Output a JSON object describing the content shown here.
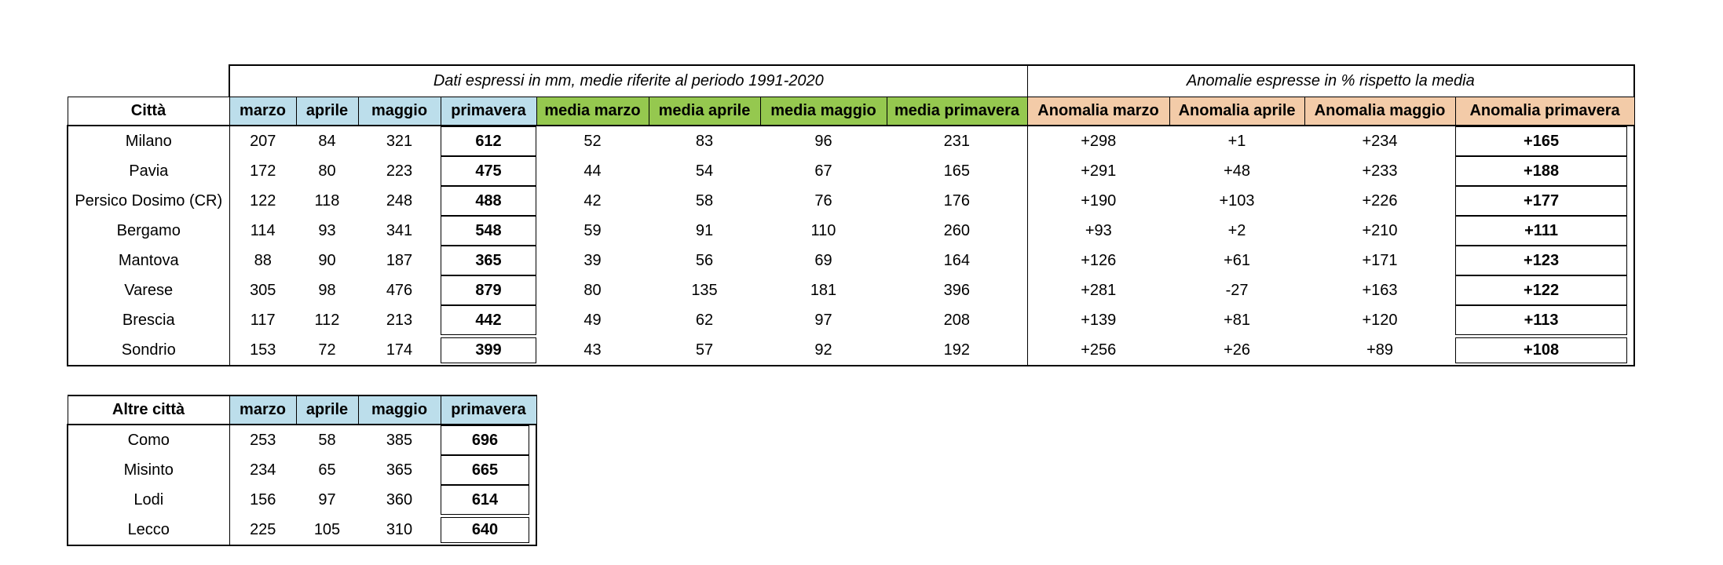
{
  "colors": {
    "page-bg": "#FFFFFF",
    "month-header-bg": "#BCDEEB",
    "media-header-bg": "#95C84F",
    "anomalia-header-bg": "#F3CBA8",
    "border": "#000000",
    "text": "#000000"
  },
  "main_table": {
    "banner_mm": "Dati espressi in mm, medie riferite al periodo 1991-2020",
    "banner_anomalie": "Anomalie espresse in % rispetto la media",
    "columns": [
      "Città",
      "marzo",
      "aprile",
      "maggio",
      "primavera",
      "media marzo",
      "media aprile",
      "media maggio",
      "media primavera",
      "Anomalia marzo",
      "Anomalia aprile",
      "Anomalia maggio",
      "Anomalia primavera"
    ],
    "rows": [
      {
        "city": "Milano",
        "values": [
          "207",
          "84",
          "321",
          "612",
          "52",
          "83",
          "96",
          "231",
          "+298",
          "+1",
          "+234",
          "+165"
        ]
      },
      {
        "city": "Pavia",
        "values": [
          "172",
          "80",
          "223",
          "475",
          "44",
          "54",
          "67",
          "165",
          "+291",
          "+48",
          "+233",
          "+188"
        ]
      },
      {
        "city": "Persico Dosimo (CR)",
        "values": [
          "122",
          "118",
          "248",
          "488",
          "42",
          "58",
          "76",
          "176",
          "+190",
          "+103",
          "+226",
          "+177"
        ]
      },
      {
        "city": "Bergamo",
        "values": [
          "114",
          "93",
          "341",
          "548",
          "59",
          "91",
          "110",
          "260",
          "+93",
          "+2",
          "+210",
          "+111"
        ]
      },
      {
        "city": "Mantova",
        "values": [
          "88",
          "90",
          "187",
          "365",
          "39",
          "56",
          "69",
          "164",
          "+126",
          "+61",
          "+171",
          "+123"
        ]
      },
      {
        "city": "Varese",
        "values": [
          "305",
          "98",
          "476",
          "879",
          "80",
          "135",
          "181",
          "396",
          "+281",
          "-27",
          "+163",
          "+122"
        ]
      },
      {
        "city": "Brescia",
        "values": [
          "117",
          "112",
          "213",
          "442",
          "49",
          "62",
          "97",
          "208",
          "+139",
          "+81",
          "+120",
          "+113"
        ]
      },
      {
        "city": "Sondrio",
        "values": [
          "153",
          "72",
          "174",
          "399",
          "43",
          "57",
          "92",
          "192",
          "+256",
          "+26",
          "+89",
          "+108"
        ]
      }
    ]
  },
  "secondary_table": {
    "columns": [
      "Altre città",
      "marzo",
      "aprile",
      "maggio",
      "primavera"
    ],
    "rows": [
      {
        "city": "Como",
        "values": [
          "253",
          "58",
          "385",
          "696"
        ]
      },
      {
        "city": "Misinto",
        "values": [
          "234",
          "65",
          "365",
          "665"
        ]
      },
      {
        "city": "Lodi",
        "values": [
          "156",
          "97",
          "360",
          "614"
        ]
      },
      {
        "city": "Lecco",
        "values": [
          "225",
          "105",
          "310",
          "640"
        ]
      }
    ]
  }
}
